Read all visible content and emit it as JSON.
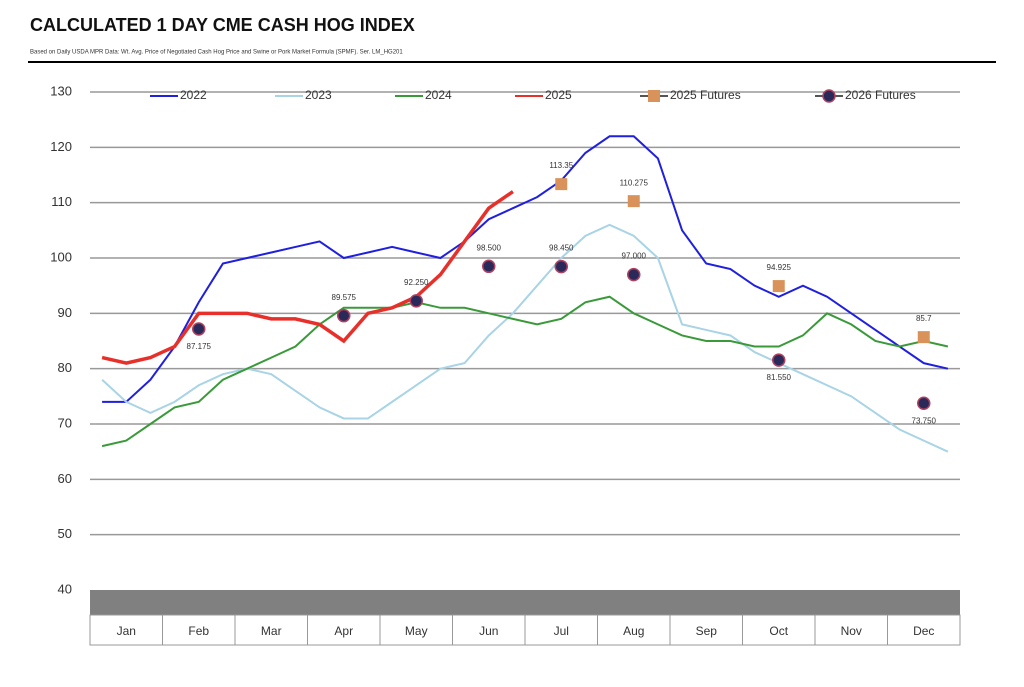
{
  "chart_data": {
    "type": "line",
    "title": "CALCULATED 1  DAY CME CASH HOG INDEX",
    "subtitle": "Based on Daily USDA MPR Data: Wt. Avg. Price of Negotiated Cash Hog Price and Swine or Pork Market Formula (SPMF). Ser. LM_HG201",
    "categories": [
      null,
      "Jan",
      null,
      null,
      "Feb",
      null,
      null,
      "Mar",
      null,
      null,
      "Apr",
      null,
      null,
      "May",
      null,
      null,
      "Jun",
      null,
      null,
      "Jul",
      null,
      null,
      "Aug",
      null,
      null,
      "Sep",
      null,
      null,
      "Oct",
      null,
      null,
      "Nov",
      null,
      null,
      "Dec",
      null
    ],
    "ylim": [
      40,
      130
    ],
    "yticks": [
      40,
      50,
      60,
      70,
      80,
      90,
      100,
      110,
      120,
      130
    ],
    "grid": true,
    "series": [
      {
        "name": "2022",
        "color": "#1f1fe0",
        "style": "line",
        "values": [
          74,
          74,
          78,
          84,
          92,
          99,
          100,
          101,
          102,
          103,
          100,
          101,
          102,
          101,
          100,
          103,
          107,
          109,
          111,
          114,
          119,
          122,
          122,
          118,
          105,
          99,
          98,
          95,
          93,
          95,
          93,
          90,
          87,
          84,
          81,
          80
        ]
      },
      {
        "name": "2023",
        "color": "#a8d4e6",
        "style": "line",
        "values": [
          78,
          74,
          72,
          74,
          77,
          79,
          80,
          79,
          76,
          73,
          71,
          71,
          74,
          77,
          80,
          81,
          86,
          90,
          95,
          100,
          104,
          106,
          104,
          100,
          88,
          87,
          86,
          83,
          81,
          79,
          77,
          75,
          72,
          69,
          67,
          65
        ]
      },
      {
        "name": "2024",
        "color": "#3a9a3a",
        "style": "line",
        "values": [
          66,
          67,
          70,
          73,
          74,
          78,
          80,
          82,
          84,
          88,
          91,
          91,
          91,
          92,
          91,
          91,
          90,
          89,
          88,
          89,
          92,
          93,
          90,
          88,
          86,
          85,
          85,
          84,
          84,
          86,
          90,
          88,
          85,
          84,
          85,
          84
        ]
      },
      {
        "name": "2025",
        "color": "#e8302a",
        "style": "line",
        "values": [
          82,
          81,
          82,
          84,
          90,
          90,
          90,
          89,
          89,
          88,
          85,
          90,
          91,
          93,
          97,
          103,
          109,
          112,
          null,
          null,
          null,
          null,
          null,
          null,
          null,
          null,
          null,
          null,
          null,
          null,
          null,
          null,
          null,
          null,
          null,
          null
        ]
      },
      {
        "name": "2025 Futures",
        "color": "#d9935a",
        "style": "square",
        "values": [
          null,
          null,
          null,
          null,
          null,
          null,
          null,
          null,
          null,
          null,
          null,
          null,
          null,
          null,
          null,
          null,
          null,
          null,
          null,
          113.35,
          null,
          null,
          110.275,
          null,
          null,
          null,
          null,
          null,
          94.925,
          null,
          null,
          null,
          null,
          null,
          85.7,
          null
        ],
        "value_labels": [
          null,
          null,
          null,
          null,
          null,
          null,
          null,
          null,
          null,
          null,
          null,
          null,
          null,
          null,
          null,
          null,
          null,
          null,
          null,
          "113.35",
          null,
          null,
          "110.275",
          null,
          null,
          null,
          null,
          null,
          "94.925",
          null,
          null,
          null,
          null,
          null,
          "85.7",
          null
        ]
      },
      {
        "name": "2026 Futures",
        "color": "#2a2a5a",
        "style": "circle",
        "values": [
          null,
          null,
          null,
          null,
          87.175,
          null,
          null,
          null,
          null,
          null,
          89.575,
          null,
          null,
          92.25,
          null,
          null,
          98.5,
          null,
          null,
          98.45,
          null,
          null,
          97,
          null,
          null,
          null,
          null,
          null,
          81.55,
          null,
          null,
          null,
          null,
          null,
          73.75,
          null
        ],
        "value_labels": [
          null,
          null,
          null,
          null,
          "87.175",
          null,
          null,
          null,
          null,
          null,
          "89.575",
          null,
          null,
          "92.250",
          null,
          null,
          "98.500",
          null,
          null,
          "98.450",
          null,
          null,
          "97.000",
          null,
          null,
          null,
          null,
          null,
          "81.550",
          null,
          null,
          null,
          null,
          null,
          "73.750",
          null
        ]
      }
    ]
  }
}
